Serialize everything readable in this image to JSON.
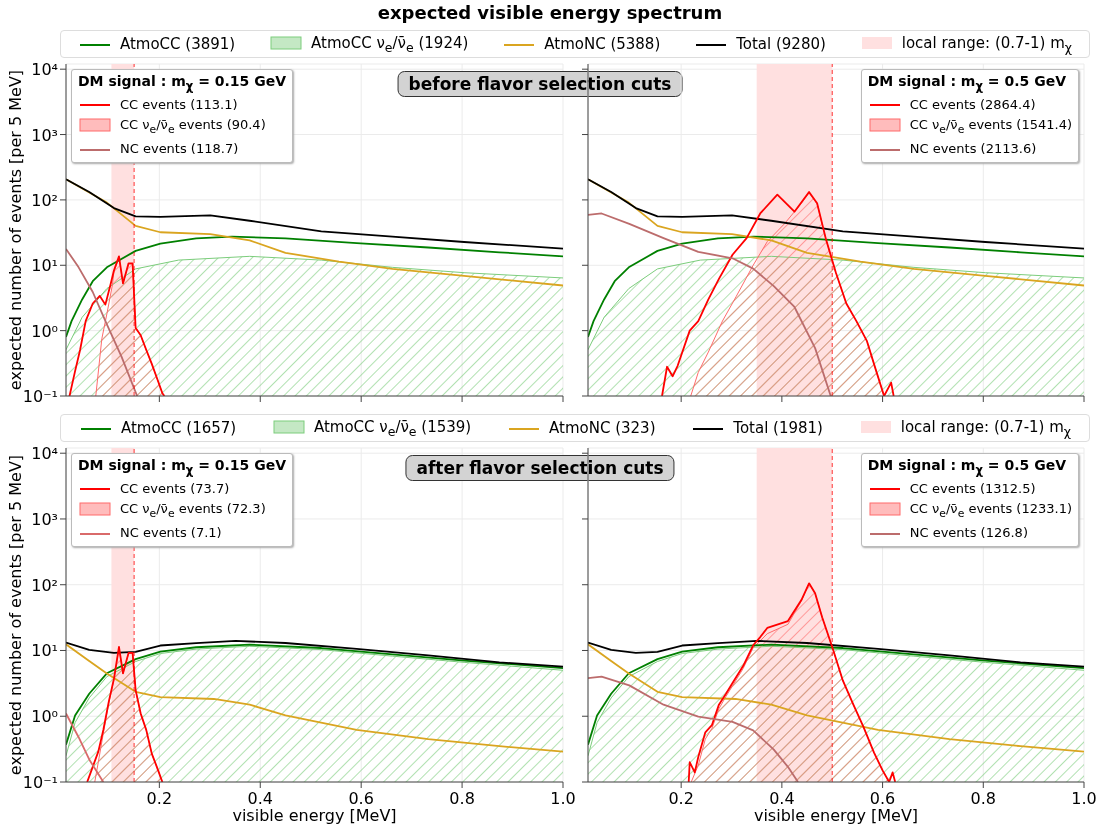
{
  "chart_data": [
    {
      "type": "line",
      "title": "expected visible energy spectrum",
      "subtitle": "before flavor selection cuts",
      "ylabel": "expected number of events [per 5 MeV]",
      "legend_title": "DM signal :  m$_{χ}$ = 0.15 GeV",
      "legend": "top",
      "log": "y",
      "grid": true,
      "tick_labels": "y",
      "xlim": [
        0.015,
        1.0
      ],
      "xticks": [
        {
          "value": 0.2,
          "label": null
        },
        {
          "value": 0.4,
          "label": null
        },
        {
          "value": 0.6,
          "label": null
        },
        {
          "value": 0.8,
          "label": null
        },
        {
          "value": 1.0,
          "label": null
        }
      ],
      "ylim": [
        0.1,
        12000
      ],
      "yticks": [
        {
          "value": 0.1,
          "label": "10⁻¹"
        },
        {
          "value": 1,
          "label": "10⁰"
        },
        {
          "value": 10,
          "label": "10¹"
        },
        {
          "value": 100,
          "label": "10²"
        },
        {
          "value": 1000,
          "label": "10³"
        },
        {
          "value": 10000,
          "label": "10⁴"
        }
      ],
      "series": [
        {
          "name": "AtmoCC (3891)",
          "color": "#008000",
          "x": [
            0.015,
            0.026,
            0.047,
            0.068,
            0.096,
            0.153,
            0.202,
            0.273,
            0.344,
            0.45,
            0.591,
            0.733,
            0.874,
            1.0
          ],
          "values": [
            0.8,
            1.4,
            3.0,
            5.7,
            9.3,
            16.6,
            21.5,
            25.8,
            27.5,
            25.8,
            21.8,
            18.7,
            15.8,
            13.7
          ]
        },
        {
          "name": "AtmoCC ν$_{e}$/ν̄$_{e}$ (1924)",
          "type": "area",
          "color": "#7ccd7c",
          "x": [
            0.015,
            0.047,
            0.096,
            0.153,
            0.238,
            0.379,
            0.521,
            0.662,
            0.804,
            1.0
          ],
          "values": [
            0.51,
            1.6,
            4.4,
            8.8,
            12,
            13.7,
            12,
            9.3,
            7.7,
            6.4
          ]
        },
        {
          "name": "AtmoNC (5388)",
          "color": "#daa520",
          "x": [
            0.015,
            0.096,
            0.153,
            0.202,
            0.301,
            0.379,
            0.45,
            0.556,
            0.662,
            0.804,
            1.0
          ],
          "values": [
            207,
            91,
            40,
            32,
            30,
            24,
            15.5,
            11.4,
            8.8,
            6.9,
            4.9
          ]
        },
        {
          "name": "Total (9280)",
          "color": "#000000",
          "x": [
            0.015,
            0.061,
            0.11,
            0.153,
            0.202,
            0.301,
            0.379,
            0.521,
            0.662,
            0.804,
            1.0
          ],
          "values": [
            207,
            132,
            75,
            56,
            55,
            58,
            48,
            33,
            27.5,
            22.7,
            18
          ]
        },
        {
          "name": "CC events (113.1)",
          "color": "#ff0000",
          "x": [
            0.022,
            0.033,
            0.043,
            0.054,
            0.068,
            0.082,
            0.093,
            0.103,
            0.11,
            0.12,
            0.128,
            0.139,
            0.147,
            0.153,
            0.163,
            0.174,
            0.185,
            0.195,
            0.206,
            0.21
          ],
          "values": [
            0.1,
            0.24,
            0.51,
            1.4,
            2.6,
            3.4,
            2.5,
            5.0,
            8.3,
            13.7,
            5.3,
            10.7,
            10.7,
            1.1,
            0.85,
            0.51,
            0.31,
            0.19,
            0.11,
            0.1
          ]
        },
        {
          "name": "CC ν$_{e}$/ν̄$_{e}$ events (90.4)",
          "type": "area",
          "color": "#ff6b6b",
          "x": [
            0.074,
            0.086,
            0.096,
            0.107,
            0.11,
            0.12,
            0.128,
            0.139,
            0.147,
            0.153,
            0.163,
            0.174,
            0.185,
            0.195,
            0.206
          ],
          "values": [
            0.1,
            0.75,
            1.8,
            5.0,
            8.0,
            13,
            5.2,
            10.5,
            10.5,
            1.1,
            0.85,
            0.5,
            0.31,
            0.19,
            0.11
          ]
        },
        {
          "name": "NC events (118.7)",
          "color": "#bc6c6c",
          "x": [
            0.015,
            0.04,
            0.068,
            0.096,
            0.125,
            0.156
          ],
          "values": [
            17.8,
            9.3,
            3.9,
            1.25,
            0.4,
            0.1
          ]
        }
      ],
      "bands": [
        {
          "axis": "x",
          "from": 0.105,
          "to": 0.15,
          "label": "local range: (0.7-1) m$_{χ}$",
          "color": "#ffe0e0"
        }
      ],
      "ref_lines": [
        {
          "axis": "x",
          "value": 0.15,
          "color": "#ff0000",
          "line_style": "dashed"
        }
      ]
    },
    {
      "type": "line",
      "legend_title": "DM signal :  m$_{χ}$ = 0.5 GeV",
      "legend": "top right",
      "log": "y",
      "grid": true,
      "tick_labels": false,
      "xlim": [
        0.015,
        1.0
      ],
      "xticks": [
        {
          "value": 0.2,
          "label": null
        },
        {
          "value": 0.4,
          "label": null
        },
        {
          "value": 0.6,
          "label": null
        },
        {
          "value": 0.8,
          "label": null
        },
        {
          "value": 1.0,
          "label": null
        }
      ],
      "ylim": [
        0.1,
        12000
      ],
      "yticks": [
        {
          "value": 0.1,
          "label": null
        },
        {
          "value": 1,
          "label": null
        },
        {
          "value": 10,
          "label": null
        },
        {
          "value": 100,
          "label": null
        },
        {
          "value": 1000,
          "label": null
        },
        {
          "value": 10000,
          "label": null
        }
      ],
      "series": [
        {
          "color": "#008000",
          "x": [
            0.015,
            0.026,
            0.047,
            0.068,
            0.096,
            0.153,
            0.202,
            0.273,
            0.344,
            0.45,
            0.591,
            0.733,
            0.874,
            1.0
          ],
          "values": [
            0.8,
            1.4,
            3.0,
            5.7,
            9.3,
            16.6,
            21.5,
            25.8,
            27.5,
            25.8,
            21.8,
            18.7,
            15.8,
            13.7
          ]
        },
        {
          "type": "area",
          "color": "#7ccd7c",
          "x": [
            0.015,
            0.047,
            0.096,
            0.153,
            0.238,
            0.379,
            0.521,
            0.662,
            0.804,
            1.0
          ],
          "values": [
            0.51,
            1.6,
            4.4,
            8.8,
            12,
            13.7,
            12,
            9.3,
            7.7,
            6.4
          ]
        },
        {
          "color": "#daa520",
          "x": [
            0.015,
            0.096,
            0.153,
            0.202,
            0.301,
            0.379,
            0.45,
            0.556,
            0.662,
            0.804,
            1.0
          ],
          "values": [
            207,
            91,
            40,
            32,
            30,
            24,
            15.5,
            11.4,
            8.8,
            6.9,
            4.9
          ]
        },
        {
          "color": "#000000",
          "x": [
            0.015,
            0.061,
            0.11,
            0.153,
            0.202,
            0.301,
            0.379,
            0.521,
            0.662,
            0.804,
            1.0
          ],
          "values": [
            207,
            132,
            75,
            56,
            55,
            58,
            48,
            33,
            27.5,
            22.7,
            18
          ]
        },
        {
          "name": "CC events (2864.4)",
          "color": "#ff0000",
          "x": [
            0.162,
            0.172,
            0.183,
            0.193,
            0.217,
            0.234,
            0.254,
            0.275,
            0.302,
            0.33,
            0.357,
            0.391,
            0.425,
            0.454,
            0.47,
            0.487,
            0.507,
            0.528,
            0.548,
            0.569,
            0.586,
            0.603,
            0.617,
            0.622
          ],
          "values": [
            0.1,
            0.28,
            0.2,
            0.29,
            1.0,
            1.4,
            3.0,
            6.2,
            14.5,
            26,
            62,
            120,
            66,
            132,
            89,
            26,
            7.8,
            2.6,
            1.4,
            0.69,
            0.26,
            0.1,
            0.16,
            0.1
          ]
        },
        {
          "name": "CC ν$_{e}$/ν̄$_{e}$ events (1541.4)",
          "type": "area",
          "color": "#ff6b6b",
          "x": [
            0.219,
            0.234,
            0.254,
            0.282,
            0.309,
            0.343,
            0.371,
            0.405,
            0.439,
            0.454,
            0.47,
            0.487,
            0.507,
            0.528,
            0.548,
            0.569,
            0.586,
            0.603
          ],
          "values": [
            0.1,
            0.23,
            0.47,
            1.4,
            3.3,
            10,
            23,
            43,
            89,
            128,
            87,
            26,
            7.8,
            2.6,
            1.4,
            0.69,
            0.26,
            0.1
          ]
        },
        {
          "name": "NC events (2113.6)",
          "color": "#bc6c6c",
          "x": [
            0.015,
            0.042,
            0.097,
            0.165,
            0.234,
            0.302,
            0.343,
            0.384,
            0.425,
            0.466,
            0.497
          ],
          "values": [
            59,
            62,
            43,
            26,
            16,
            12.8,
            8.9,
            4.8,
            2.3,
            0.54,
            0.1
          ]
        }
      ],
      "bands": [
        {
          "axis": "x",
          "from": 0.35,
          "to": 0.5,
          "color": "#ffe0e0"
        }
      ],
      "ref_lines": [
        {
          "axis": "x",
          "value": 0.5,
          "color": "#ff0000",
          "line_style": "dashed"
        }
      ]
    },
    {
      "type": "line",
      "subtitle": "after flavor selection cuts",
      "xlabel": "visible energy [MeV]",
      "ylabel": "expected number of events [per 5 MeV]",
      "legend_title": "DM signal :  m$_{χ}$ = 0.15 GeV",
      "legend": "top",
      "log": "y",
      "grid": true,
      "xlim": [
        0.015,
        1.0
      ],
      "xticks": [
        0.2,
        0.4,
        0.6,
        0.8,
        {
          "value": 1.0,
          "label": "1.0"
        }
      ],
      "ylim": [
        0.1,
        12000
      ],
      "yticks": [
        {
          "value": 0.1,
          "label": "10⁻¹"
        },
        {
          "value": 1,
          "label": "10⁰"
        },
        {
          "value": 10,
          "label": "10¹"
        },
        {
          "value": 100,
          "label": "10²"
        },
        {
          "value": 1000,
          "label": "10³"
        },
        {
          "value": 10000,
          "label": "10⁴"
        }
      ],
      "series": [
        {
          "name": "AtmoCC (1657)",
          "color": "#008000",
          "x": [
            0.015,
            0.033,
            0.061,
            0.096,
            0.153,
            0.202,
            0.273,
            0.379,
            0.521,
            0.662,
            0.804,
            1.0
          ],
          "values": [
            0.37,
            1.03,
            2.2,
            4.5,
            7.4,
            9.6,
            11.2,
            12.3,
            10.9,
            8.7,
            7.0,
            5.4
          ]
        },
        {
          "name": "AtmoCC ν$_{e}$/ν̄$_{e}$ (1539)",
          "type": "area",
          "color": "#7ccd7c",
          "x": [
            0.015,
            0.033,
            0.061,
            0.096,
            0.153,
            0.202,
            0.273,
            0.379,
            0.521,
            0.662,
            0.804,
            1.0
          ],
          "values": [
            0.25,
            0.8,
            1.9,
            4.0,
            6.8,
            9.0,
            10.5,
            11.6,
            10.3,
            8.2,
            6.6,
            5.0
          ]
        },
        {
          "name": "AtmoNC (323)",
          "color": "#daa520",
          "x": [
            0.015,
            0.061,
            0.096,
            0.153,
            0.202,
            0.308,
            0.379,
            0.45,
            0.591,
            0.733,
            0.874,
            1.0
          ],
          "values": [
            12.4,
            6.9,
            4.45,
            2.35,
            1.95,
            1.83,
            1.5,
            1.03,
            0.62,
            0.45,
            0.35,
            0.29
          ]
        },
        {
          "name": "Total (1981)",
          "color": "#000000",
          "x": [
            0.015,
            0.061,
            0.11,
            0.153,
            0.202,
            0.273,
            0.351,
            0.45,
            0.591,
            0.733,
            0.874,
            1.0
          ],
          "values": [
            13.2,
            10.2,
            9.2,
            9.5,
            11.9,
            12.9,
            14,
            13,
            10.6,
            8.4,
            6.6,
            5.7
          ]
        },
        {
          "name": "CC events (73.7)",
          "color": "#ff0000",
          "x": [
            0.057,
            0.068,
            0.079,
            0.089,
            0.1,
            0.11,
            0.12,
            0.128,
            0.139,
            0.147,
            0.153,
            0.163,
            0.174,
            0.185,
            0.195,
            0.206
          ],
          "values": [
            0.1,
            0.17,
            0.29,
            0.62,
            1.7,
            3.7,
            11.3,
            4.5,
            9.2,
            9.2,
            2.5,
            1.1,
            0.62,
            0.27,
            0.17,
            0.1
          ]
        },
        {
          "name": "CC ν$_{e}$/ν̄$_{e}$ events (72.3)",
          "type": "area",
          "color": "#ff6b6b",
          "x": [
            0.072,
            0.079,
            0.089,
            0.1,
            0.11,
            0.12,
            0.128,
            0.139,
            0.147,
            0.153,
            0.163,
            0.174,
            0.185,
            0.195,
            0.206
          ],
          "values": [
            0.1,
            0.2,
            0.55,
            1.6,
            3.6,
            11,
            4.4,
            9.0,
            9.0,
            2.5,
            1.1,
            0.62,
            0.27,
            0.17,
            0.1
          ]
        },
        {
          "name": "NC events (7.1)",
          "color": "#d96a6a",
          "x": [
            0.015,
            0.04,
            0.061,
            0.089
          ],
          "values": [
            1.1,
            0.48,
            0.22,
            0.1
          ]
        }
      ],
      "bands": [
        {
          "axis": "x",
          "from": 0.105,
          "to": 0.15,
          "label": "local range: (0.7-1) m$_{χ}$",
          "color": "#ffe0e0"
        }
      ],
      "ref_lines": [
        {
          "axis": "x",
          "value": 0.15,
          "color": "#ff0000",
          "line_style": "dashed"
        }
      ]
    },
    {
      "type": "line",
      "xlabel": "visible energy [MeV]",
      "legend_title": "DM signal :  m$_{χ}$ = 0.5 GeV",
      "legend": "top right",
      "log": "y",
      "grid": true,
      "tick_labels": "x",
      "xlim": [
        0.015,
        1.0
      ],
      "xticks": [
        0.2,
        0.4,
        0.6,
        0.8,
        {
          "value": 1.0,
          "label": "1.0"
        }
      ],
      "ylim": [
        0.1,
        12000
      ],
      "yticks": [
        {
          "value": 0.1,
          "label": null
        },
        {
          "value": 1,
          "label": null
        },
        {
          "value": 10,
          "label": null
        },
        {
          "value": 100,
          "label": null
        },
        {
          "value": 1000,
          "label": null
        },
        {
          "value": 10000,
          "label": null
        }
      ],
      "series": [
        {
          "color": "#008000",
          "x": [
            0.015,
            0.033,
            0.061,
            0.096,
            0.153,
            0.202,
            0.273,
            0.379,
            0.521,
            0.662,
            0.804,
            1.0
          ],
          "values": [
            0.37,
            1.03,
            2.2,
            4.5,
            7.4,
            9.6,
            11.2,
            12.3,
            10.9,
            8.7,
            7.0,
            5.4
          ]
        },
        {
          "type": "area",
          "color": "#7ccd7c",
          "x": [
            0.015,
            0.033,
            0.061,
            0.096,
            0.153,
            0.202,
            0.273,
            0.379,
            0.521,
            0.662,
            0.804,
            1.0
          ],
          "values": [
            0.25,
            0.8,
            1.9,
            4.0,
            6.8,
            9.0,
            10.5,
            11.6,
            10.3,
            8.2,
            6.6,
            5.0
          ]
        },
        {
          "color": "#daa520",
          "x": [
            0.015,
            0.061,
            0.096,
            0.153,
            0.202,
            0.308,
            0.379,
            0.45,
            0.591,
            0.733,
            0.874,
            1.0
          ],
          "values": [
            12.4,
            6.9,
            4.45,
            2.35,
            1.95,
            1.83,
            1.5,
            1.03,
            0.62,
            0.45,
            0.35,
            0.29
          ]
        },
        {
          "color": "#000000",
          "x": [
            0.015,
            0.061,
            0.11,
            0.153,
            0.202,
            0.273,
            0.351,
            0.45,
            0.591,
            0.733,
            0.874,
            1.0
          ],
          "values": [
            13.2,
            10.2,
            9.2,
            9.5,
            11.9,
            12.9,
            14,
            13,
            10.6,
            8.4,
            6.6,
            5.7
          ]
        },
        {
          "name": "CC events (1312.5)",
          "color": "#ff0000",
          "x": [
            0.215,
            0.217,
            0.227,
            0.234,
            0.248,
            0.261,
            0.275,
            0.289,
            0.302,
            0.323,
            0.343,
            0.357,
            0.371,
            0.412,
            0.439,
            0.454,
            0.466,
            0.48,
            0.501,
            0.521,
            0.542,
            0.562,
            0.583,
            0.6,
            0.613,
            0.62,
            0.625
          ],
          "values": [
            0.1,
            0.2,
            0.14,
            0.24,
            0.57,
            0.73,
            1.5,
            2.2,
            3.2,
            5.8,
            12,
            16,
            22,
            28,
            59,
            105,
            74,
            32,
            10.7,
            3.5,
            1.5,
            0.69,
            0.28,
            0.15,
            0.1,
            0.14,
            0.1
          ]
        },
        {
          "name": "CC ν$_{e}$/ν̄$_{e}$ events (1233.1)",
          "type": "area",
          "color": "#ff6b6b",
          "x": [
            0.22,
            0.234,
            0.248,
            0.261,
            0.275,
            0.289,
            0.302,
            0.323,
            0.343,
            0.357,
            0.371,
            0.412,
            0.439,
            0.454,
            0.466,
            0.48,
            0.501,
            0.521,
            0.542,
            0.562,
            0.583,
            0.6,
            0.613
          ],
          "values": [
            0.1,
            0.18,
            0.45,
            0.65,
            1.3,
            2.0,
            2.9,
            5.3,
            11,
            14,
            18,
            25,
            57,
            105,
            74,
            32,
            10.7,
            3.5,
            1.5,
            0.69,
            0.28,
            0.15,
            0.1
          ]
        },
        {
          "name": "NC events (126.8)",
          "color": "#bc6c6c",
          "x": [
            0.015,
            0.042,
            0.097,
            0.165,
            0.234,
            0.302,
            0.343,
            0.384,
            0.412,
            0.432
          ],
          "values": [
            3.8,
            4.0,
            2.95,
            1.5,
            0.99,
            0.82,
            0.61,
            0.31,
            0.17,
            0.1
          ]
        }
      ],
      "bands": [
        {
          "axis": "x",
          "from": 0.35,
          "to": 0.5,
          "color": "#ffe0e0"
        }
      ],
      "ref_lines": [
        {
          "axis": "x",
          "value": 0.5,
          "color": "#ff0000",
          "line_style": "dashed"
        }
      ]
    }
  ]
}
